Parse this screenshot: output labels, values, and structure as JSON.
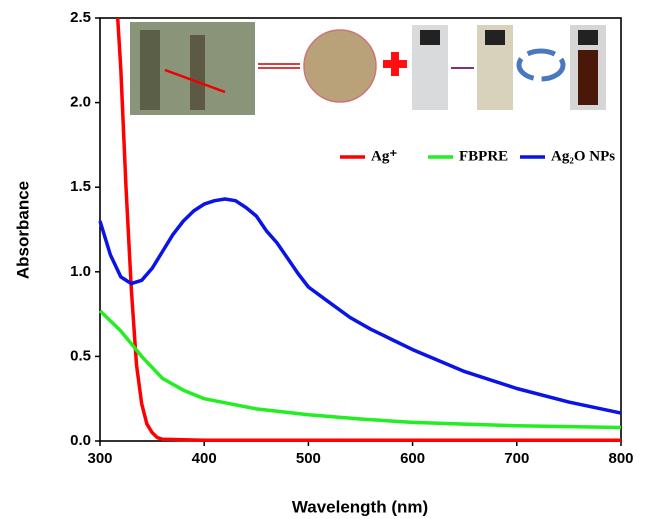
{
  "chart_data": {
    "type": "line",
    "x_label": "Wavelength (nm)",
    "y_label": "Absorbance",
    "xlim": [
      300,
      800
    ],
    "ylim": [
      0,
      2.5
    ],
    "xticks": [
      300,
      400,
      500,
      600,
      700,
      800
    ],
    "yticks": [
      {
        "value": 0,
        "label": "0.0"
      },
      0.5,
      {
        "value": 1,
        "label": "1.0"
      },
      1.5,
      {
        "value": 2,
        "label": "2.0"
      },
      2.5
    ],
    "legend": "upper right",
    "series": [
      {
        "name": "Ag⁺",
        "color": "#ff0000",
        "x": [
          317,
          320,
          325,
          330,
          335,
          340,
          345,
          350,
          355,
          360,
          400,
          500,
          600,
          700,
          800
        ],
        "values": [
          2.5,
          2.2,
          1.5,
          0.9,
          0.45,
          0.22,
          0.1,
          0.05,
          0.02,
          0.01,
          0.005,
          0.005,
          0.005,
          0.005,
          0.005
        ]
      },
      {
        "name": "FBPRE",
        "color": "#22ee22",
        "x": [
          300,
          320,
          340,
          360,
          380,
          400,
          450,
          500,
          550,
          600,
          650,
          700,
          750,
          800
        ],
        "values": [
          0.77,
          0.65,
          0.5,
          0.37,
          0.3,
          0.25,
          0.19,
          0.155,
          0.13,
          0.11,
          0.1,
          0.09,
          0.085,
          0.08
        ]
      },
      {
        "name": "Ag₂O NPs",
        "color": "#0a14e6",
        "x": [
          300,
          310,
          320,
          330,
          340,
          350,
          360,
          370,
          380,
          390,
          400,
          410,
          420,
          430,
          440,
          450,
          460,
          470,
          480,
          490,
          500,
          520,
          540,
          560,
          580,
          600,
          650,
          700,
          750,
          800
        ],
        "values": [
          1.3,
          1.1,
          0.97,
          0.93,
          0.95,
          1.02,
          1.12,
          1.22,
          1.3,
          1.36,
          1.4,
          1.42,
          1.43,
          1.42,
          1.38,
          1.33,
          1.24,
          1.17,
          1.08,
          0.99,
          0.91,
          0.82,
          0.73,
          0.66,
          0.6,
          0.54,
          0.41,
          0.31,
          0.23,
          0.165
        ]
      }
    ]
  }
}
